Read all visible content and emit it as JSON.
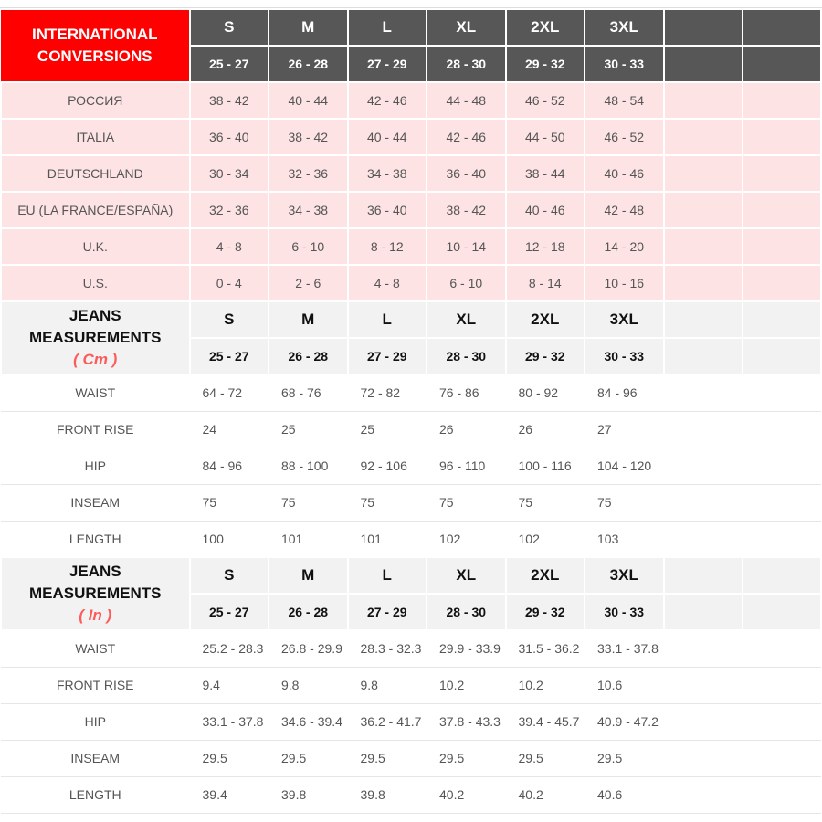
{
  "sizes": [
    "S",
    "M",
    "L",
    "XL",
    "2XL",
    "3XL"
  ],
  "waist_ranges": [
    "25 - 27",
    "26 - 28",
    "27 - 29",
    "28 - 30",
    "29 - 32",
    "30 - 33"
  ],
  "international": {
    "title": "INTERNATIONAL CONVERSIONS",
    "rows": [
      {
        "label": "РОССИЯ",
        "values": [
          "38 - 42",
          "40 - 44",
          "42 - 46",
          "44 - 48",
          "46 - 52",
          "48 - 54"
        ]
      },
      {
        "label": "ITALIA",
        "values": [
          "36 - 40",
          "38 - 42",
          "40 - 44",
          "42 - 46",
          "44 - 50",
          "46 - 52"
        ]
      },
      {
        "label": "DEUTSCHLAND",
        "values": [
          "30 - 34",
          "32 - 36",
          "34 - 38",
          "36 - 40",
          "38 - 44",
          "40 - 46"
        ]
      },
      {
        "label": "EU (LA FRANCE/ESPAÑA)",
        "values": [
          "32 - 36",
          "34 - 38",
          "36 - 40",
          "38 - 42",
          "40 - 46",
          "42 - 48"
        ]
      },
      {
        "label": "U.K.",
        "values": [
          "4 - 8",
          "6 - 10",
          "8 - 12",
          "10 - 14",
          "12 - 18",
          "14 - 20"
        ]
      },
      {
        "label": "U.S.",
        "values": [
          "0 - 4",
          "2 - 6",
          "4 - 8",
          "6 - 10",
          "8 - 14",
          "10 - 16"
        ]
      }
    ]
  },
  "jeans_cm": {
    "title": "JEANS MEASUREMENTS",
    "unit": "( Cm )",
    "rows": [
      {
        "label": "WAIST",
        "values": [
          "64 - 72",
          "68 - 76",
          "72 - 82",
          "76 - 86",
          "80 - 92",
          "84 - 96"
        ]
      },
      {
        "label": "FRONT RISE",
        "values": [
          "24",
          "25",
          "25",
          "26",
          "26",
          "27"
        ]
      },
      {
        "label": "HIP",
        "values": [
          "84 - 96",
          "88 - 100",
          "92 - 106",
          "96 - 110",
          "100 - 116",
          "104 - 120"
        ]
      },
      {
        "label": "INSEAM",
        "values": [
          "75",
          "75",
          "75",
          "75",
          "75",
          "75"
        ]
      },
      {
        "label": "LENGTH",
        "values": [
          "100",
          "101",
          "101",
          "102",
          "102",
          "103"
        ]
      }
    ]
  },
  "jeans_in": {
    "title": "JEANS MEASUREMENTS",
    "unit": "( In )",
    "rows": [
      {
        "label": "WAIST",
        "values": [
          "25.2 - 28.3",
          "26.8 - 29.9",
          "28.3 - 32.3",
          "29.9 - 33.9",
          "31.5 - 36.2",
          "33.1 - 37.8"
        ]
      },
      {
        "label": "FRONT RISE",
        "values": [
          "9.4",
          "9.8",
          "9.8",
          "10.2",
          "10.2",
          "10.6"
        ]
      },
      {
        "label": "HIP",
        "values": [
          "33.1 - 37.8",
          "34.6 - 39.4",
          "36.2 - 41.7",
          "37.8 - 43.3",
          "39.4 - 45.7",
          "40.9 - 47.2"
        ]
      },
      {
        "label": "INSEAM",
        "values": [
          "29.5",
          "29.5",
          "29.5",
          "29.5",
          "29.5",
          "29.5"
        ]
      },
      {
        "label": "LENGTH",
        "values": [
          "39.4",
          "39.8",
          "39.8",
          "40.2",
          "40.2",
          "40.6"
        ]
      }
    ]
  },
  "colors": {
    "accent_red": "#ff0000",
    "header_dark": "#575757",
    "pink_row": "#fde3e3",
    "unit_text": "#ff5a5a"
  }
}
